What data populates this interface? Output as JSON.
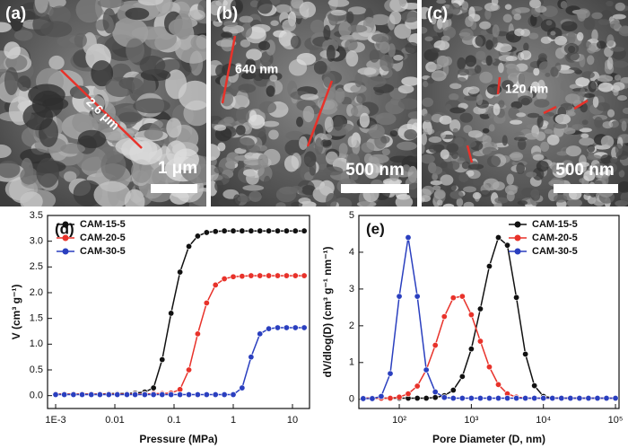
{
  "panels": [
    {
      "label": "(a)",
      "annotation": "2.6 μm",
      "scale_bar": "1 μm"
    },
    {
      "label": "(b)",
      "annotation": "640 nm",
      "scale_bar": "500 nm"
    },
    {
      "label": "(c)",
      "annotation": "120 nm",
      "scale_bar": "500 nm"
    }
  ],
  "chart_data": [
    {
      "type": "line",
      "label": "(d)",
      "xlabel": "Pressure (MPa)",
      "ylabel": "V (cm³ g⁻¹)",
      "xscale": "log",
      "xlim": [
        0.00073,
        19.4
      ],
      "ylim": [
        -0.25,
        3.5
      ],
      "xticks": [
        {
          "value": 0.001,
          "label": "1E-3"
        },
        0.01,
        0.1,
        1,
        10
      ],
      "yticks": [
        {
          "value": 0,
          "label": "0.0"
        },
        0.5,
        {
          "value": 1,
          "label": "1.0"
        },
        1.5,
        {
          "value": 2,
          "label": "2.0"
        },
        2.5,
        {
          "value": 3,
          "label": "3.0"
        },
        3.5
      ],
      "legend": "upper left",
      "x": [
        0.001,
        0.0014,
        0.002,
        0.0028,
        0.004,
        0.0056,
        0.0079,
        0.011,
        0.016,
        0.022,
        0.032,
        0.045,
        0.063,
        0.089,
        0.126,
        0.178,
        0.251,
        0.355,
        0.501,
        0.708,
        1,
        1.41,
        2,
        2.82,
        3.98,
        5.62,
        7.94,
        11.2,
        15.8
      ],
      "series": [
        {
          "name": "CAM-15-5",
          "color": "#111111",
          "values": [
            0.03,
            0.03,
            0.03,
            0.03,
            0.03,
            0.03,
            0.04,
            0.04,
            0.04,
            0.05,
            0.07,
            0.15,
            0.7,
            1.6,
            2.4,
            2.9,
            3.1,
            3.17,
            3.19,
            3.2,
            3.2,
            3.2,
            3.2,
            3.2,
            3.2,
            3.2,
            3.2,
            3.2,
            3.2
          ]
        },
        {
          "name": "CAM-20-5",
          "color": "#e8322a",
          "values": [
            0.03,
            0.03,
            0.03,
            0.03,
            0.03,
            0.03,
            0.03,
            0.03,
            0.03,
            0.03,
            0.03,
            0.04,
            0.04,
            0.05,
            0.12,
            0.5,
            1.2,
            1.8,
            2.15,
            2.27,
            2.31,
            2.32,
            2.33,
            2.33,
            2.33,
            2.33,
            2.33,
            2.33,
            2.33
          ]
        },
        {
          "name": "CAM-30-5",
          "color": "#2a3fbf",
          "values": [
            0.02,
            0.02,
            0.02,
            0.02,
            0.02,
            0.02,
            0.02,
            0.02,
            0.02,
            0.02,
            0.02,
            0.02,
            0.02,
            0.02,
            0.02,
            0.02,
            0.02,
            0.02,
            0.02,
            0.02,
            0.02,
            0.15,
            0.75,
            1.2,
            1.3,
            1.32,
            1.32,
            1.32,
            1.32
          ]
        }
      ]
    },
    {
      "type": "line",
      "label": "(e)",
      "xlabel": "Pore Diameter (D, nm)",
      "ylabel": "dV/dlog(D) (cm³ g⁻¹ nm⁻¹)",
      "xscale": "log",
      "xlim": [
        27.5,
        112000
      ],
      "ylim": [
        -0.25,
        5
      ],
      "xticks": [
        {
          "value": 100,
          "label": "10²"
        },
        {
          "value": 1000,
          "label": "10³"
        },
        {
          "value": 10000,
          "label": "10⁴"
        },
        {
          "value": 100000,
          "label": "10⁵"
        }
      ],
      "yticks": [
        0,
        1,
        2,
        3,
        4,
        5
      ],
      "legend": "upper right",
      "x": [
        31.6,
        42.2,
        56.2,
        75,
        100,
        133,
        178,
        237,
        316,
        422,
        562,
        750,
        1000,
        1334,
        1778,
        2371,
        3162,
        4217,
        5623,
        7499,
        10000,
        13335,
        17783,
        23714,
        31623,
        42170,
        56234,
        74989,
        100000
      ],
      "series": [
        {
          "name": "CAM-15-5",
          "color": "#111111",
          "values": [
            0.03,
            0.03,
            0.03,
            0.03,
            0.03,
            0.03,
            0.03,
            0.03,
            0.05,
            0.1,
            0.25,
            0.62,
            1.37,
            2.46,
            3.62,
            4.4,
            4.19,
            2.77,
            1.23,
            0.37,
            0.08,
            0.04,
            0.03,
            0.03,
            0.03,
            0.03,
            0.03,
            0.03,
            0.03
          ]
        },
        {
          "name": "CAM-20-5",
          "color": "#e8322a",
          "values": [
            0.03,
            0.03,
            0.03,
            0.03,
            0.06,
            0.15,
            0.36,
            0.8,
            1.47,
            2.25,
            2.76,
            2.8,
            2.3,
            1.58,
            0.88,
            0.4,
            0.15,
            0.06,
            0.03,
            0.03,
            0.03,
            0.03,
            0.03,
            0.03,
            0.03,
            0.03,
            0.03,
            0.03,
            0.03
          ]
        },
        {
          "name": "CAM-30-5",
          "color": "#2a3fbf",
          "values": [
            0.02,
            0.02,
            0.08,
            0.7,
            2.8,
            4.4,
            2.8,
            0.8,
            0.2,
            0.05,
            0.03,
            0.03,
            0.03,
            0.03,
            0.03,
            0.03,
            0.03,
            0.03,
            0.03,
            0.03,
            0.03,
            0.03,
            0.03,
            0.03,
            0.03,
            0.03,
            0.03,
            0.03,
            0.03
          ]
        }
      ]
    }
  ]
}
